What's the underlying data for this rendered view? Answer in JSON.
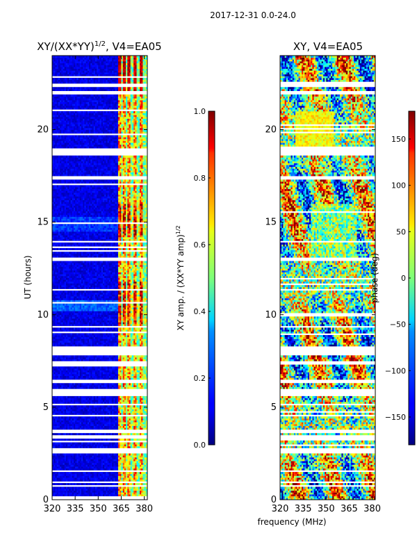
{
  "chart_data": {
    "suptitle": "2017-12-31 0.0-24.0",
    "xlabel": "frequency (MHz)",
    "panels": [
      {
        "type": "heatmap",
        "title": "XY/(XX*YY)^1/2, V4=EA05",
        "title_main": "XY/(XX*YY)",
        "title_exp": "1/2",
        "title_tail": ", V4=EA05",
        "ylabel": "UT (hours)",
        "xlim": [
          320,
          382
        ],
        "ylim": [
          0,
          24
        ],
        "xticks": [
          320,
          335,
          350,
          365,
          380
        ],
        "yticks": [
          0,
          5,
          10,
          15,
          20
        ],
        "colorbar": {
          "label": "XY amp. / (XX*YY amp)^1/2",
          "label_main": "XY amp. / (XX*YY amp)",
          "label_exp": "1/2",
          "range": [
            0.0,
            1.0
          ],
          "ticks": [
            "0.0",
            "0.2",
            "0.4",
            "0.6",
            "0.8",
            "1.0"
          ],
          "tick_values": [
            0,
            0.2,
            0.4,
            0.6,
            0.8,
            1.0
          ]
        }
      },
      {
        "type": "heatmap",
        "title": "XY, V4=EA05",
        "ylabel": "",
        "xlim": [
          320,
          382
        ],
        "ylim": [
          0,
          24
        ],
        "xticks": [
          320,
          335,
          350,
          365,
          380
        ],
        "yticks": [
          0,
          5,
          10,
          15,
          20
        ],
        "colorbar": {
          "label": "phase (deg)",
          "range": [
            -180,
            180
          ],
          "ticks": [
            "−150",
            "−100",
            "−50",
            "0",
            "50",
            "100",
            "150"
          ],
          "tick_values": [
            -150,
            -100,
            -50,
            0,
            50,
            100,
            150
          ]
        }
      }
    ],
    "flagged_ut_bands": [
      [
        0.9,
        1.0
      ],
      [
        1.5,
        1.6
      ],
      [
        2.55,
        2.75
      ],
      [
        3.35,
        3.45
      ],
      [
        3.65,
        3.75
      ],
      [
        4.5,
        4.6
      ],
      [
        5.6,
        6.0
      ],
      [
        6.3,
        6.45
      ],
      [
        7.3,
        7.5
      ],
      [
        7.8,
        8.3
      ],
      [
        9.3,
        9.4
      ],
      [
        11.3,
        11.4
      ],
      [
        12.9,
        13.05
      ],
      [
        13.9,
        14.0
      ],
      [
        17.3,
        17.45
      ],
      [
        18.6,
        19.0
      ],
      [
        21.9,
        22.1
      ],
      [
        22.35,
        22.45
      ]
    ],
    "rfi_bright_channels_mhz": [
      364,
      367,
      370,
      374,
      378
    ]
  }
}
